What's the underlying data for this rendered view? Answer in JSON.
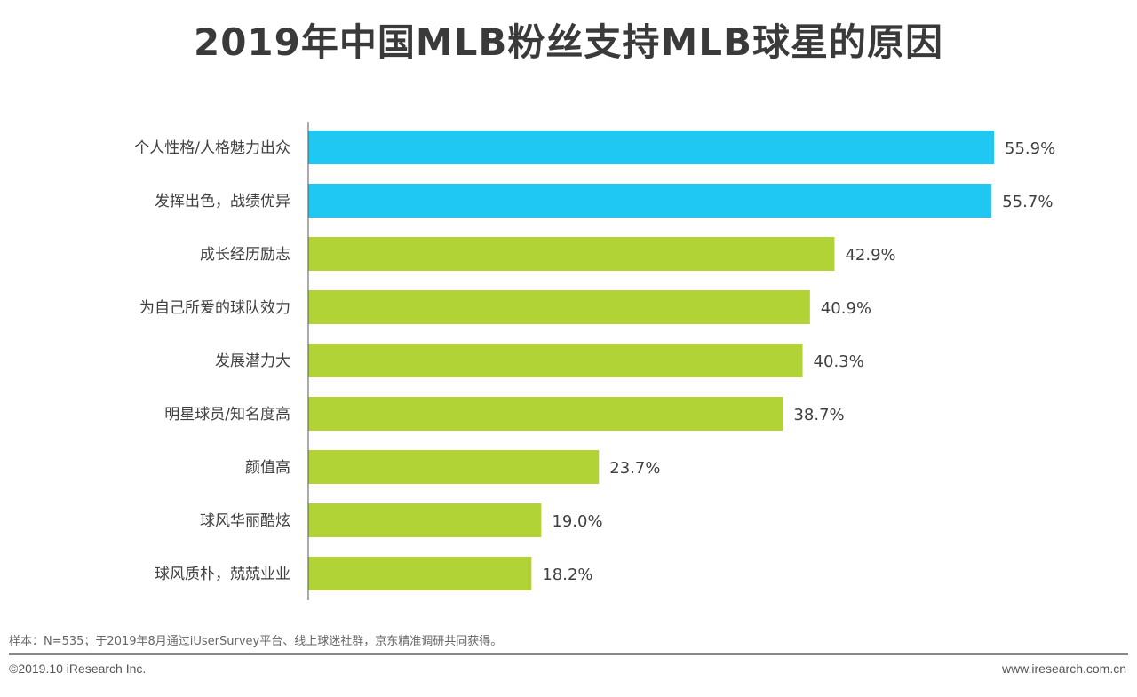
{
  "chart_data": {
    "type": "bar",
    "orientation": "horizontal",
    "title": "2019年中国MLB粉丝支持MLB球星的原因",
    "categories": [
      "个人性格/人格魅力出众",
      "发挥出色，战绩优异",
      "成长经历励志",
      "为自己所爱的球队效力",
      "发展潜力大",
      "明星球员/知名度高",
      "颜值高",
      "球风华丽酷炫",
      "球风质朴，兢兢业业"
    ],
    "values": [
      55.9,
      55.7,
      42.9,
      40.9,
      40.3,
      38.7,
      23.7,
      19.0,
      18.2
    ],
    "value_labels": [
      "55.9%",
      "55.7%",
      "42.9%",
      "40.9%",
      "40.3%",
      "38.7%",
      "23.7%",
      "19.0%",
      "18.2%"
    ],
    "unit": "%",
    "xlim": [
      0,
      60
    ],
    "grid": false,
    "colors": {
      "highlight": "#1FC8F2",
      "default": "#B1D335"
    },
    "highlighted_count": 2
  },
  "footer": {
    "note": "样本：N=535；于2019年8月通过iUserSurvey平台、线上球迷社群，京东精准调研共同获得。",
    "copyright": "©2019.10 iResearch Inc.",
    "website": "www.iresearch.com.cn"
  }
}
